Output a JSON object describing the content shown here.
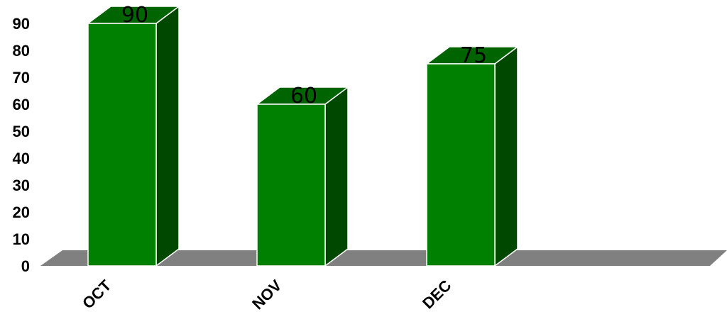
{
  "chart_data": {
    "type": "bar",
    "categories": [
      "OCT",
      "NOV",
      "DEC"
    ],
    "values": [
      90,
      60,
      75
    ],
    "data_labels": [
      "90",
      "60",
      "75"
    ],
    "yticks": [
      "0",
      "10",
      "20",
      "30",
      "40",
      "50",
      "60",
      "70",
      "80",
      "90"
    ],
    "ylim": [
      0,
      90
    ],
    "title": "",
    "xlabel": "",
    "ylabel": "",
    "grid": false,
    "style": "3d",
    "colors": {
      "bar_front": "#008000",
      "bar_top": "#006400",
      "bar_side": "#004800",
      "bar_edge": "#ffffff",
      "floor": "#808080"
    }
  }
}
